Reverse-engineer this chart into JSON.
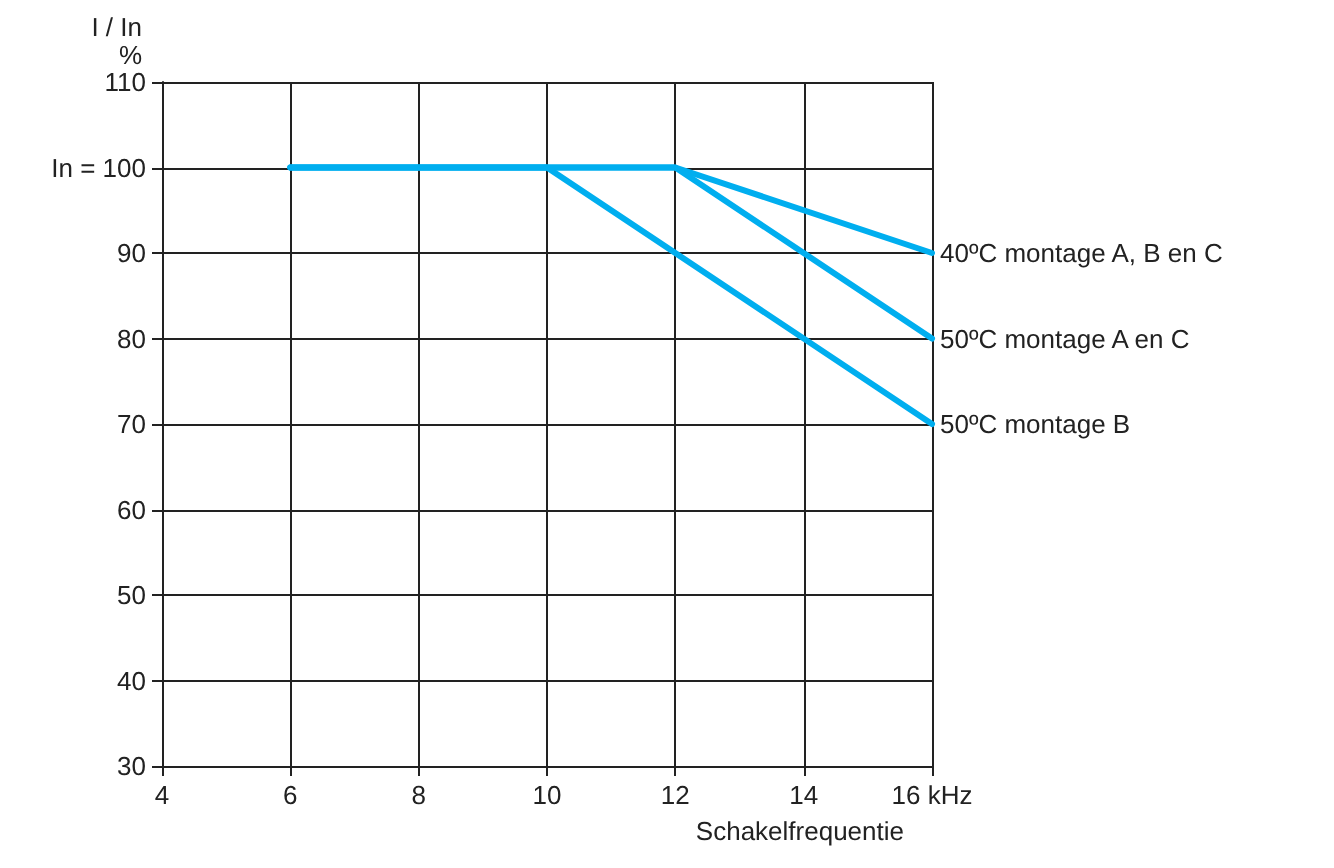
{
  "chart_data": {
    "type": "line",
    "ylabel": "I / In\n%",
    "xlabel": "Schakelfrequentie",
    "xlim": [
      4,
      16
    ],
    "xticks": [
      4,
      6,
      8,
      10,
      12,
      14,
      {
        "value": 16,
        "label": "16 kHz"
      }
    ],
    "ylim": [
      30,
      110
    ],
    "yticks": [
      30,
      40,
      50,
      60,
      70,
      80,
      90,
      {
        "value": 100,
        "label": "In = 100"
      },
      110
    ],
    "grid": true,
    "legend": false,
    "marker": "none",
    "line_style": "solid",
    "series": [
      {
        "name": "40ºC montage A, B en C",
        "color": "#00aeef",
        "x": [
          6,
          12,
          16
        ],
        "values": [
          100,
          100,
          90
        ]
      },
      {
        "name": "50ºC montage A en C",
        "color": "#00aeef",
        "x": [
          6,
          12,
          16
        ],
        "values": [
          100,
          100,
          80
        ]
      },
      {
        "name": "50ºC montage B",
        "color": "#00aeef",
        "x": [
          6,
          10,
          16
        ],
        "values": [
          100,
          100,
          70
        ]
      }
    ]
  }
}
